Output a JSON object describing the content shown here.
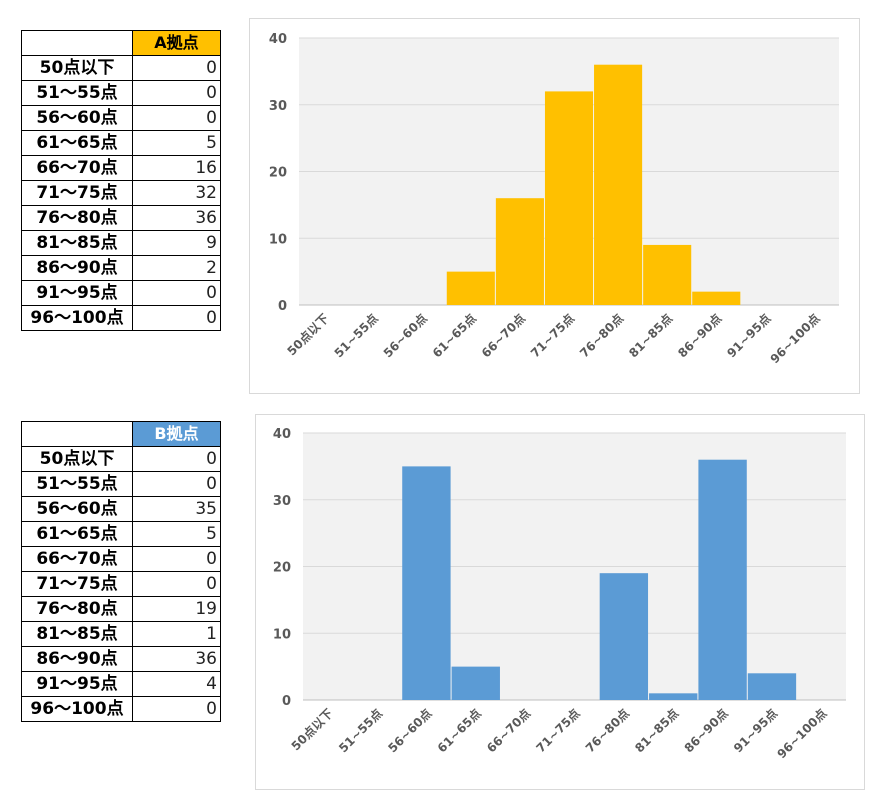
{
  "tables": [
    {
      "id": "A",
      "header": "A拠点",
      "rows": [
        {
          "label": "50点以下",
          "value": "0"
        },
        {
          "label": "51～55点",
          "value": "0"
        },
        {
          "label": "56～60点",
          "value": "0"
        },
        {
          "label": "61～65点",
          "value": "5"
        },
        {
          "label": "66～70点",
          "value": "16"
        },
        {
          "label": "71～75点",
          "value": "32"
        },
        {
          "label": "76～80点",
          "value": "36"
        },
        {
          "label": "81～85点",
          "value": "9"
        },
        {
          "label": "86～90点",
          "value": "2"
        },
        {
          "label": "91～95点",
          "value": "0"
        },
        {
          "label": "96～100点",
          "value": "0"
        }
      ]
    },
    {
      "id": "B",
      "header": "B拠点",
      "rows": [
        {
          "label": "50点以下",
          "value": "0"
        },
        {
          "label": "51～55点",
          "value": "0"
        },
        {
          "label": "56～60点",
          "value": "35"
        },
        {
          "label": "61～65点",
          "value": "5"
        },
        {
          "label": "66～70点",
          "value": "0"
        },
        {
          "label": "71～75点",
          "value": "0"
        },
        {
          "label": "76～80点",
          "value": "19"
        },
        {
          "label": "81～85点",
          "value": "1"
        },
        {
          "label": "86～90点",
          "value": "36"
        },
        {
          "label": "91～95点",
          "value": "4"
        },
        {
          "label": "96～100点",
          "value": "0"
        }
      ]
    }
  ],
  "chart_data": [
    {
      "type": "bar",
      "categories": [
        "50点以下",
        "51~55点",
        "56~60点",
        "61~65点",
        "66~70点",
        "71~75点",
        "76~80点",
        "81~85点",
        "86~90点",
        "91~95点",
        "96~100点"
      ],
      "series": [
        {
          "values": [
            0,
            0,
            0,
            5,
            16,
            32,
            36,
            9,
            2,
            0,
            0
          ],
          "color": "#ffc000"
        }
      ],
      "ylim": [
        0,
        40
      ],
      "yticks": [
        0,
        10,
        20,
        30,
        40
      ],
      "grid": true,
      "plot_background": "#f2f2f2"
    },
    {
      "type": "bar",
      "categories": [
        "50点以下",
        "51~55点",
        "56~60点",
        "61~65点",
        "66~70点",
        "71~75点",
        "76~80点",
        "81~85点",
        "86~90点",
        "91~95点",
        "96~100点"
      ],
      "series": [
        {
          "values": [
            0,
            0,
            35,
            5,
            0,
            0,
            19,
            1,
            36,
            4,
            0
          ],
          "color": "#5b9bd5"
        }
      ],
      "ylim": [
        0,
        40
      ],
      "yticks": [
        0,
        10,
        20,
        30,
        40
      ],
      "grid": true,
      "plot_background": "#f2f2f2"
    }
  ]
}
